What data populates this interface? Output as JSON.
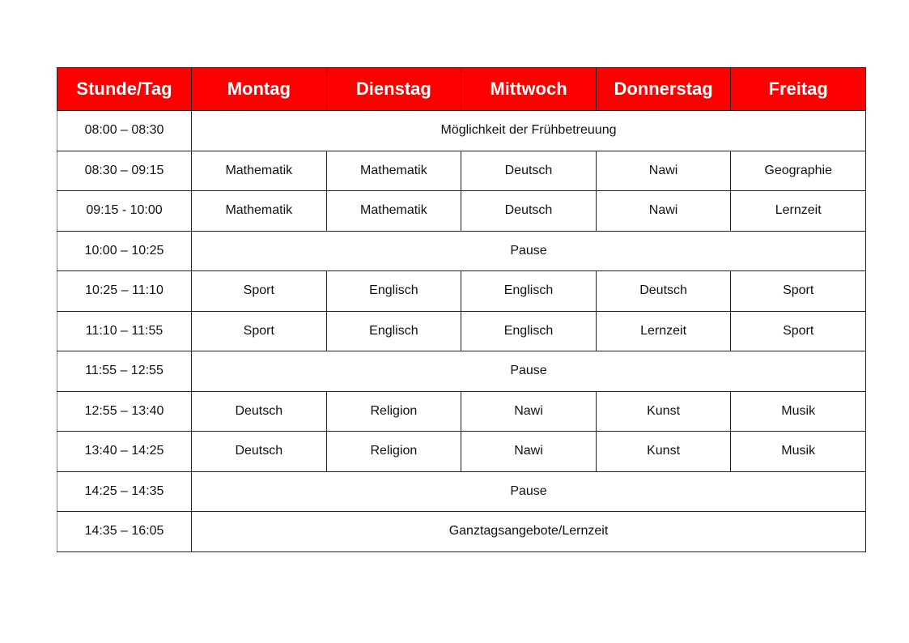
{
  "header": [
    "Stunde/Tag",
    "Montag",
    "Dienstag",
    "Mittwoch",
    "Donnerstag",
    "Freitag"
  ],
  "rows": [
    {
      "time": "08:00 – 08:30",
      "span": "Möglichkeit der Frühbetreuung"
    },
    {
      "time": "08:30 – 09:15",
      "cells": [
        "Mathematik",
        "Mathematik",
        "Deutsch",
        "Nawi",
        "Geographie"
      ]
    },
    {
      "time": "09:15 - 10:00",
      "cells": [
        "Mathematik",
        "Mathematik",
        "Deutsch",
        "Nawi",
        "Lernzeit"
      ]
    },
    {
      "time": "10:00 – 10:25",
      "span": "Pause"
    },
    {
      "time": "10:25 – 11:10",
      "cells": [
        "Sport",
        "Englisch",
        "Englisch",
        "Deutsch",
        "Sport"
      ]
    },
    {
      "time": "11:10 – 11:55",
      "cells": [
        "Sport",
        "Englisch",
        "Englisch",
        "Lernzeit",
        "Sport"
      ]
    },
    {
      "time": "11:55 – 12:55",
      "span": "Pause"
    },
    {
      "time": "12:55 – 13:40",
      "cells": [
        "Deutsch",
        "Religion",
        "Nawi",
        "Kunst",
        "Musik"
      ]
    },
    {
      "time": "13:40 – 14:25",
      "cells": [
        "Deutsch",
        "Religion",
        "Nawi",
        "Kunst",
        "Musik"
      ]
    },
    {
      "time": "14:25 – 14:35",
      "span": "Pause"
    },
    {
      "time": "14:35 – 16:05",
      "span": "Ganztagsangebote/Lernzeit"
    }
  ],
  "colors": {
    "header_bg": "#ff0000",
    "header_text": "#ffffff"
  }
}
